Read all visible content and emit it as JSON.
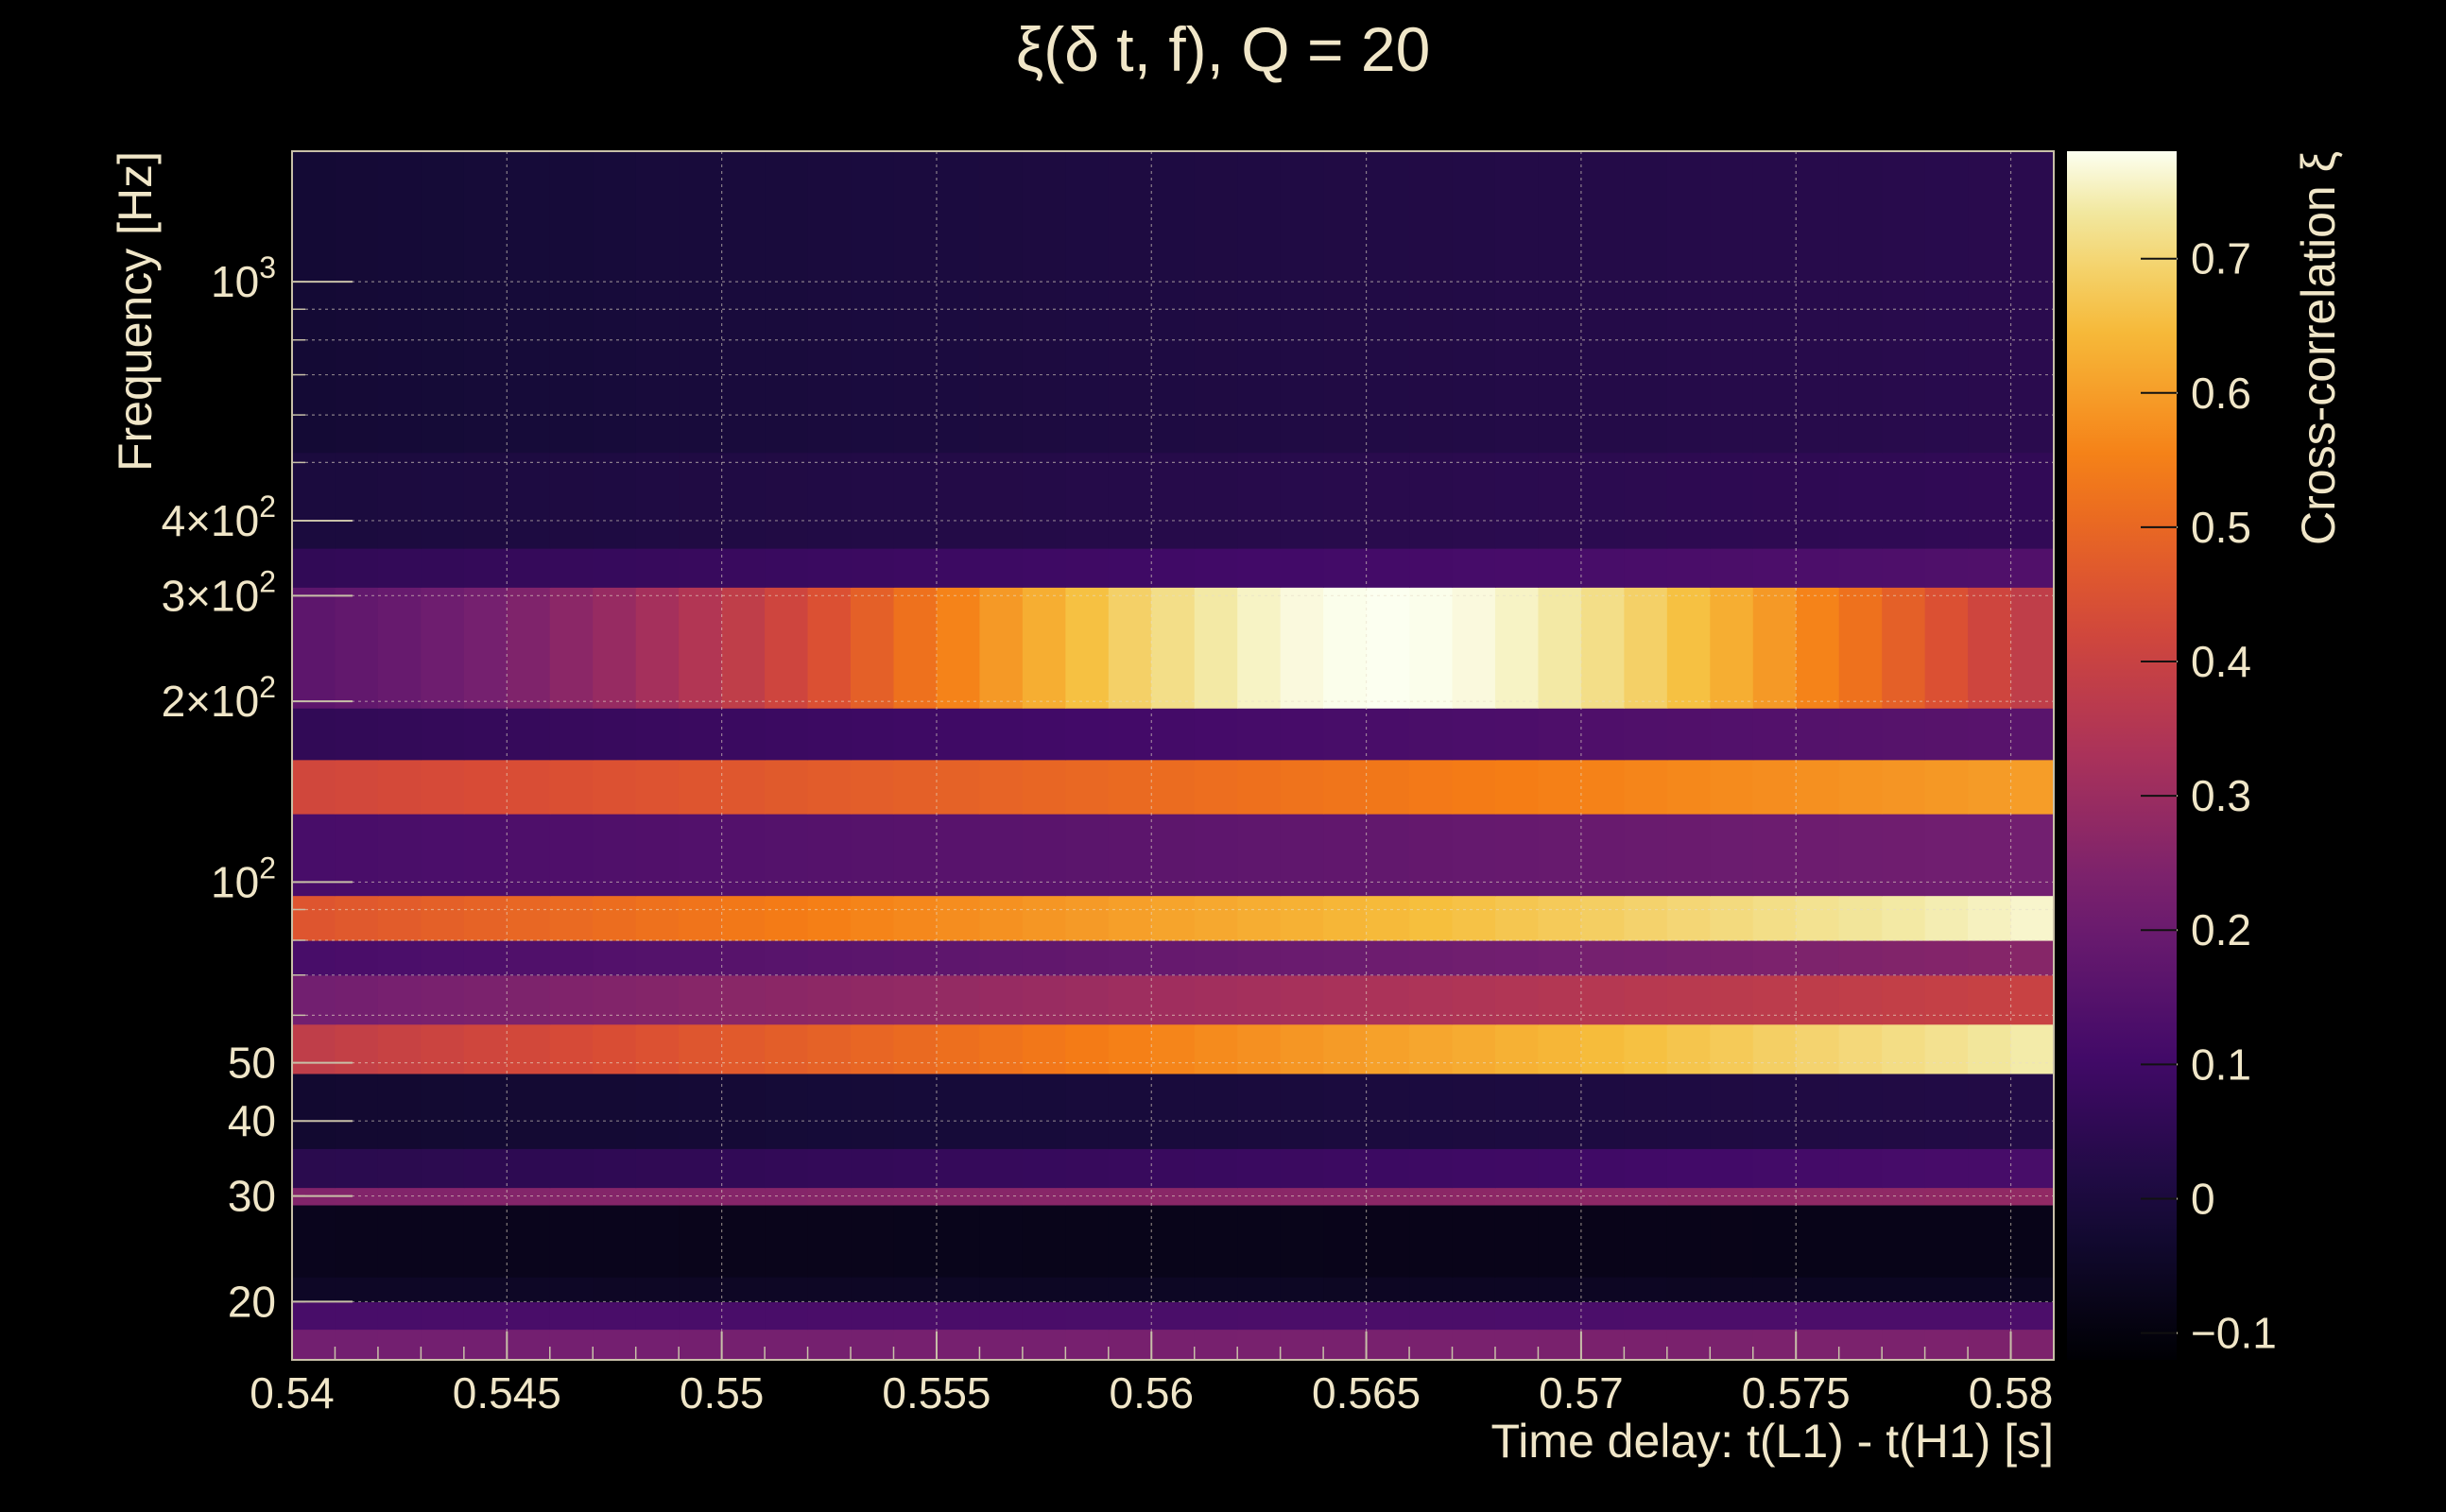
{
  "chart_data": {
    "type": "heatmap",
    "title": "ξ(δ t, f), Q = 20",
    "xlabel": "Time delay: t(L1) - t(H1) [s]",
    "ylabel": "Frequency [Hz]",
    "colorbar_label": "Cross-correlation ξ",
    "xlim": [
      0.54,
      0.581
    ],
    "ylim": [
      16,
      1650
    ],
    "yscale": "log",
    "zlim": [
      -0.12,
      0.78
    ],
    "grid": true,
    "x_ticks": [
      {
        "value": 0.54,
        "label": "0.54"
      },
      {
        "value": 0.545,
        "label": "0.545"
      },
      {
        "value": 0.55,
        "label": "0.55"
      },
      {
        "value": 0.555,
        "label": "0.555"
      },
      {
        "value": 0.56,
        "label": "0.56"
      },
      {
        "value": 0.565,
        "label": "0.565"
      },
      {
        "value": 0.57,
        "label": "0.57"
      },
      {
        "value": 0.575,
        "label": "0.575"
      },
      {
        "value": 0.58,
        "label": "0.58"
      }
    ],
    "y_ticks": [
      {
        "value": 20,
        "base": "20",
        "exp": ""
      },
      {
        "value": 30,
        "base": "30",
        "exp": ""
      },
      {
        "value": 40,
        "base": "40",
        "exp": ""
      },
      {
        "value": 50,
        "base": "50",
        "exp": ""
      },
      {
        "value": 100,
        "base": "10",
        "exp": "2"
      },
      {
        "value": 200,
        "base": "2×10",
        "exp": "2"
      },
      {
        "value": 300,
        "base": "3×10",
        "exp": "2"
      },
      {
        "value": 400,
        "base": "4×10",
        "exp": "2"
      },
      {
        "value": 1000,
        "base": "10",
        "exp": "3"
      }
    ],
    "z_ticks": [
      {
        "value": -0.1,
        "label": "−0.1"
      },
      {
        "value": 0,
        "label": "0"
      },
      {
        "value": 0.1,
        "label": "0.1"
      },
      {
        "value": 0.2,
        "label": "0.2"
      },
      {
        "value": 0.3,
        "label": "0.3"
      },
      {
        "value": 0.4,
        "label": "0.4"
      },
      {
        "value": 0.5,
        "label": "0.5"
      },
      {
        "value": 0.6,
        "label": "0.6"
      },
      {
        "value": 0.7,
        "label": "0.7"
      }
    ],
    "x_bins": 41,
    "bands": [
      {
        "f_low": 16,
        "f_high": 18,
        "start": 0.22,
        "end": 0.24
      },
      {
        "f_low": 18,
        "f_high": 20,
        "start": 0.12,
        "end": 0.13
      },
      {
        "f_low": 20,
        "f_high": 22,
        "start": -0.05,
        "end": -0.06
      },
      {
        "f_low": 22,
        "f_high": 29,
        "start": -0.07,
        "end": -0.08
      },
      {
        "f_low": 29,
        "f_high": 31,
        "start": 0.25,
        "end": 0.28
      },
      {
        "f_low": 31,
        "f_high": 36,
        "start": 0.04,
        "end": 0.12
      },
      {
        "f_low": 36,
        "f_high": 48,
        "start": -0.03,
        "end": 0.02
      },
      {
        "f_low": 48,
        "f_high": 58,
        "start": 0.38,
        "end": 0.74
      },
      {
        "f_low": 58,
        "f_high": 70,
        "start": 0.22,
        "end": 0.4
      },
      {
        "f_low": 70,
        "f_high": 80,
        "start": 0.12,
        "end": 0.26
      },
      {
        "f_low": 80,
        "f_high": 95,
        "start": 0.46,
        "end": 0.76
      },
      {
        "f_low": 95,
        "f_high": 130,
        "start": 0.12,
        "end": 0.22
      },
      {
        "f_low": 130,
        "f_high": 160,
        "start": 0.42,
        "end": 0.6
      },
      {
        "f_low": 160,
        "f_high": 195,
        "start": 0.06,
        "end": 0.16
      },
      {
        "f_low": 195,
        "f_high": 310,
        "peak": 0.78,
        "peak_x": 0.5655,
        "width": 0.011,
        "base": 0.12
      },
      {
        "f_low": 310,
        "f_high": 360,
        "start": 0.06,
        "end": 0.14
      },
      {
        "f_low": 360,
        "f_high": 520,
        "start": 0.0,
        "end": 0.06
      },
      {
        "f_low": 520,
        "f_high": 1650,
        "start": -0.02,
        "end": 0.04
      }
    ]
  }
}
